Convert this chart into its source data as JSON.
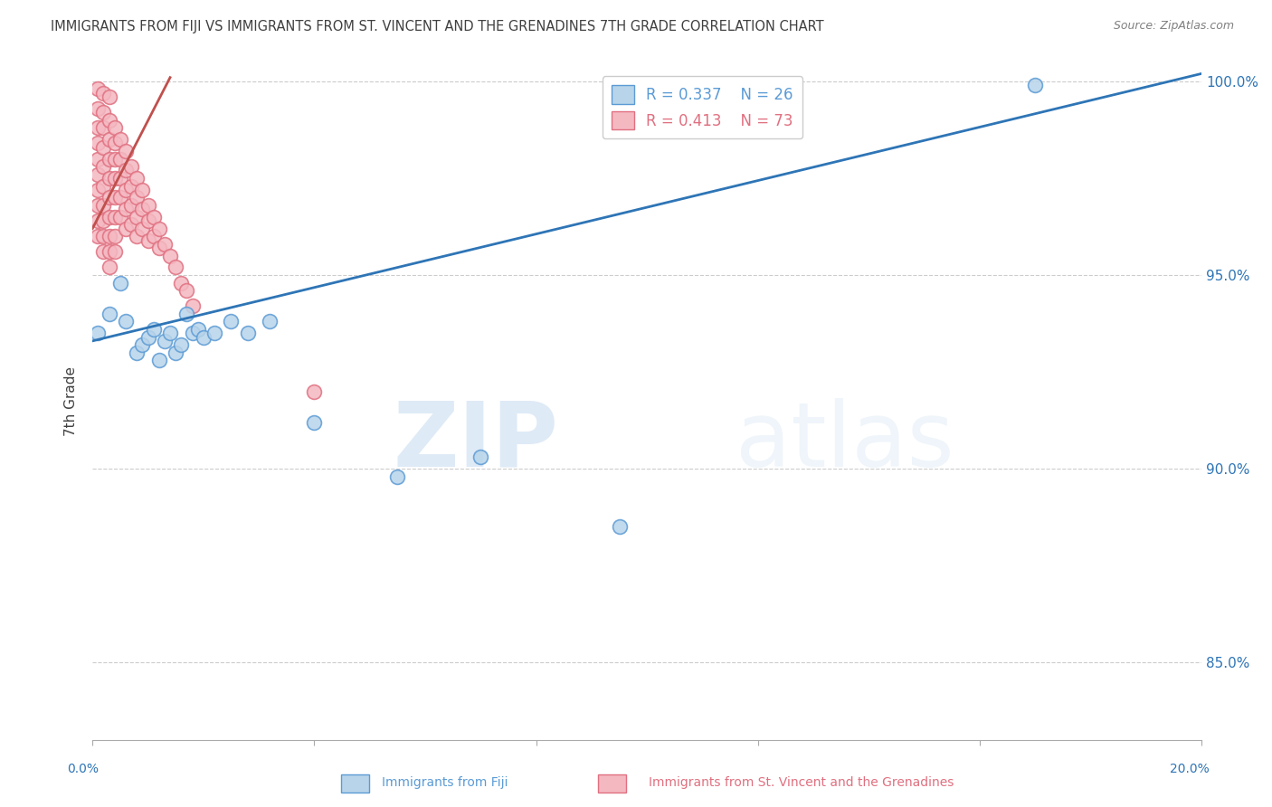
{
  "title": "IMMIGRANTS FROM FIJI VS IMMIGRANTS FROM ST. VINCENT AND THE GRENADINES 7TH GRADE CORRELATION CHART",
  "source": "Source: ZipAtlas.com",
  "ylabel": "7th Grade",
  "xlabel": "",
  "xlim": [
    0.0,
    0.2
  ],
  "ylim": [
    0.83,
    1.005
  ],
  "xticks": [
    0.0,
    0.04,
    0.08,
    0.12,
    0.16,
    0.2
  ],
  "ytick_labels": [
    "85.0%",
    "90.0%",
    "95.0%",
    "100.0%"
  ],
  "yticks": [
    0.85,
    0.9,
    0.95,
    1.0
  ],
  "watermark_zip": "ZIP",
  "watermark_atlas": "atlas",
  "fiji_color": "#b8d4ea",
  "fiji_edge_color": "#5b9bd5",
  "stvg_color": "#f4b8c1",
  "stvg_edge_color": "#e07080",
  "fiji_line_color": "#2e75b6",
  "stvg_line_color": "#c0504d",
  "fiji_R": 0.337,
  "fiji_N": 26,
  "stvg_R": 0.413,
  "stvg_N": 73,
  "fiji_line_x0": 0.0,
  "fiji_line_y0": 0.933,
  "fiji_line_x1": 0.2,
  "fiji_line_y1": 1.002,
  "stvg_line_x0": 0.0,
  "stvg_line_y0": 0.962,
  "stvg_line_x1": 0.014,
  "stvg_line_y1": 1.001,
  "fiji_scatter_x": [
    0.001,
    0.003,
    0.005,
    0.006,
    0.008,
    0.009,
    0.01,
    0.011,
    0.012,
    0.013,
    0.014,
    0.015,
    0.016,
    0.017,
    0.018,
    0.019,
    0.02,
    0.022,
    0.025,
    0.028,
    0.032,
    0.04,
    0.055,
    0.07,
    0.095,
    0.17
  ],
  "fiji_scatter_y": [
    0.935,
    0.94,
    0.948,
    0.938,
    0.93,
    0.932,
    0.934,
    0.936,
    0.928,
    0.933,
    0.935,
    0.93,
    0.932,
    0.94,
    0.935,
    0.936,
    0.934,
    0.935,
    0.938,
    0.935,
    0.938,
    0.912,
    0.898,
    0.903,
    0.885,
    0.999
  ],
  "stvg_scatter_x": [
    0.001,
    0.001,
    0.001,
    0.001,
    0.001,
    0.001,
    0.001,
    0.001,
    0.001,
    0.001,
    0.002,
    0.002,
    0.002,
    0.002,
    0.002,
    0.002,
    0.002,
    0.002,
    0.002,
    0.002,
    0.003,
    0.003,
    0.003,
    0.003,
    0.003,
    0.003,
    0.003,
    0.003,
    0.003,
    0.003,
    0.004,
    0.004,
    0.004,
    0.004,
    0.004,
    0.004,
    0.004,
    0.004,
    0.005,
    0.005,
    0.005,
    0.005,
    0.005,
    0.006,
    0.006,
    0.006,
    0.006,
    0.006,
    0.007,
    0.007,
    0.007,
    0.007,
    0.008,
    0.008,
    0.008,
    0.008,
    0.009,
    0.009,
    0.009,
    0.01,
    0.01,
    0.01,
    0.011,
    0.011,
    0.012,
    0.012,
    0.013,
    0.014,
    0.015,
    0.016,
    0.017,
    0.018,
    0.04
  ],
  "stvg_scatter_y": [
    0.998,
    0.993,
    0.988,
    0.984,
    0.98,
    0.976,
    0.972,
    0.968,
    0.964,
    0.96,
    0.997,
    0.992,
    0.988,
    0.983,
    0.978,
    0.973,
    0.968,
    0.964,
    0.96,
    0.956,
    0.996,
    0.99,
    0.985,
    0.98,
    0.975,
    0.97,
    0.965,
    0.96,
    0.956,
    0.952,
    0.988,
    0.984,
    0.98,
    0.975,
    0.97,
    0.965,
    0.96,
    0.956,
    0.985,
    0.98,
    0.975,
    0.97,
    0.965,
    0.982,
    0.977,
    0.972,
    0.967,
    0.962,
    0.978,
    0.973,
    0.968,
    0.963,
    0.975,
    0.97,
    0.965,
    0.96,
    0.972,
    0.967,
    0.962,
    0.968,
    0.964,
    0.959,
    0.965,
    0.96,
    0.962,
    0.957,
    0.958,
    0.955,
    0.952,
    0.948,
    0.946,
    0.942,
    0.92
  ],
  "background_color": "#ffffff",
  "grid_color": "#cccccc",
  "tick_label_color": "#2e75b6",
  "title_color": "#404040",
  "title_fontsize": 10.5,
  "axis_fontsize": 10,
  "legend_fontsize": 11
}
